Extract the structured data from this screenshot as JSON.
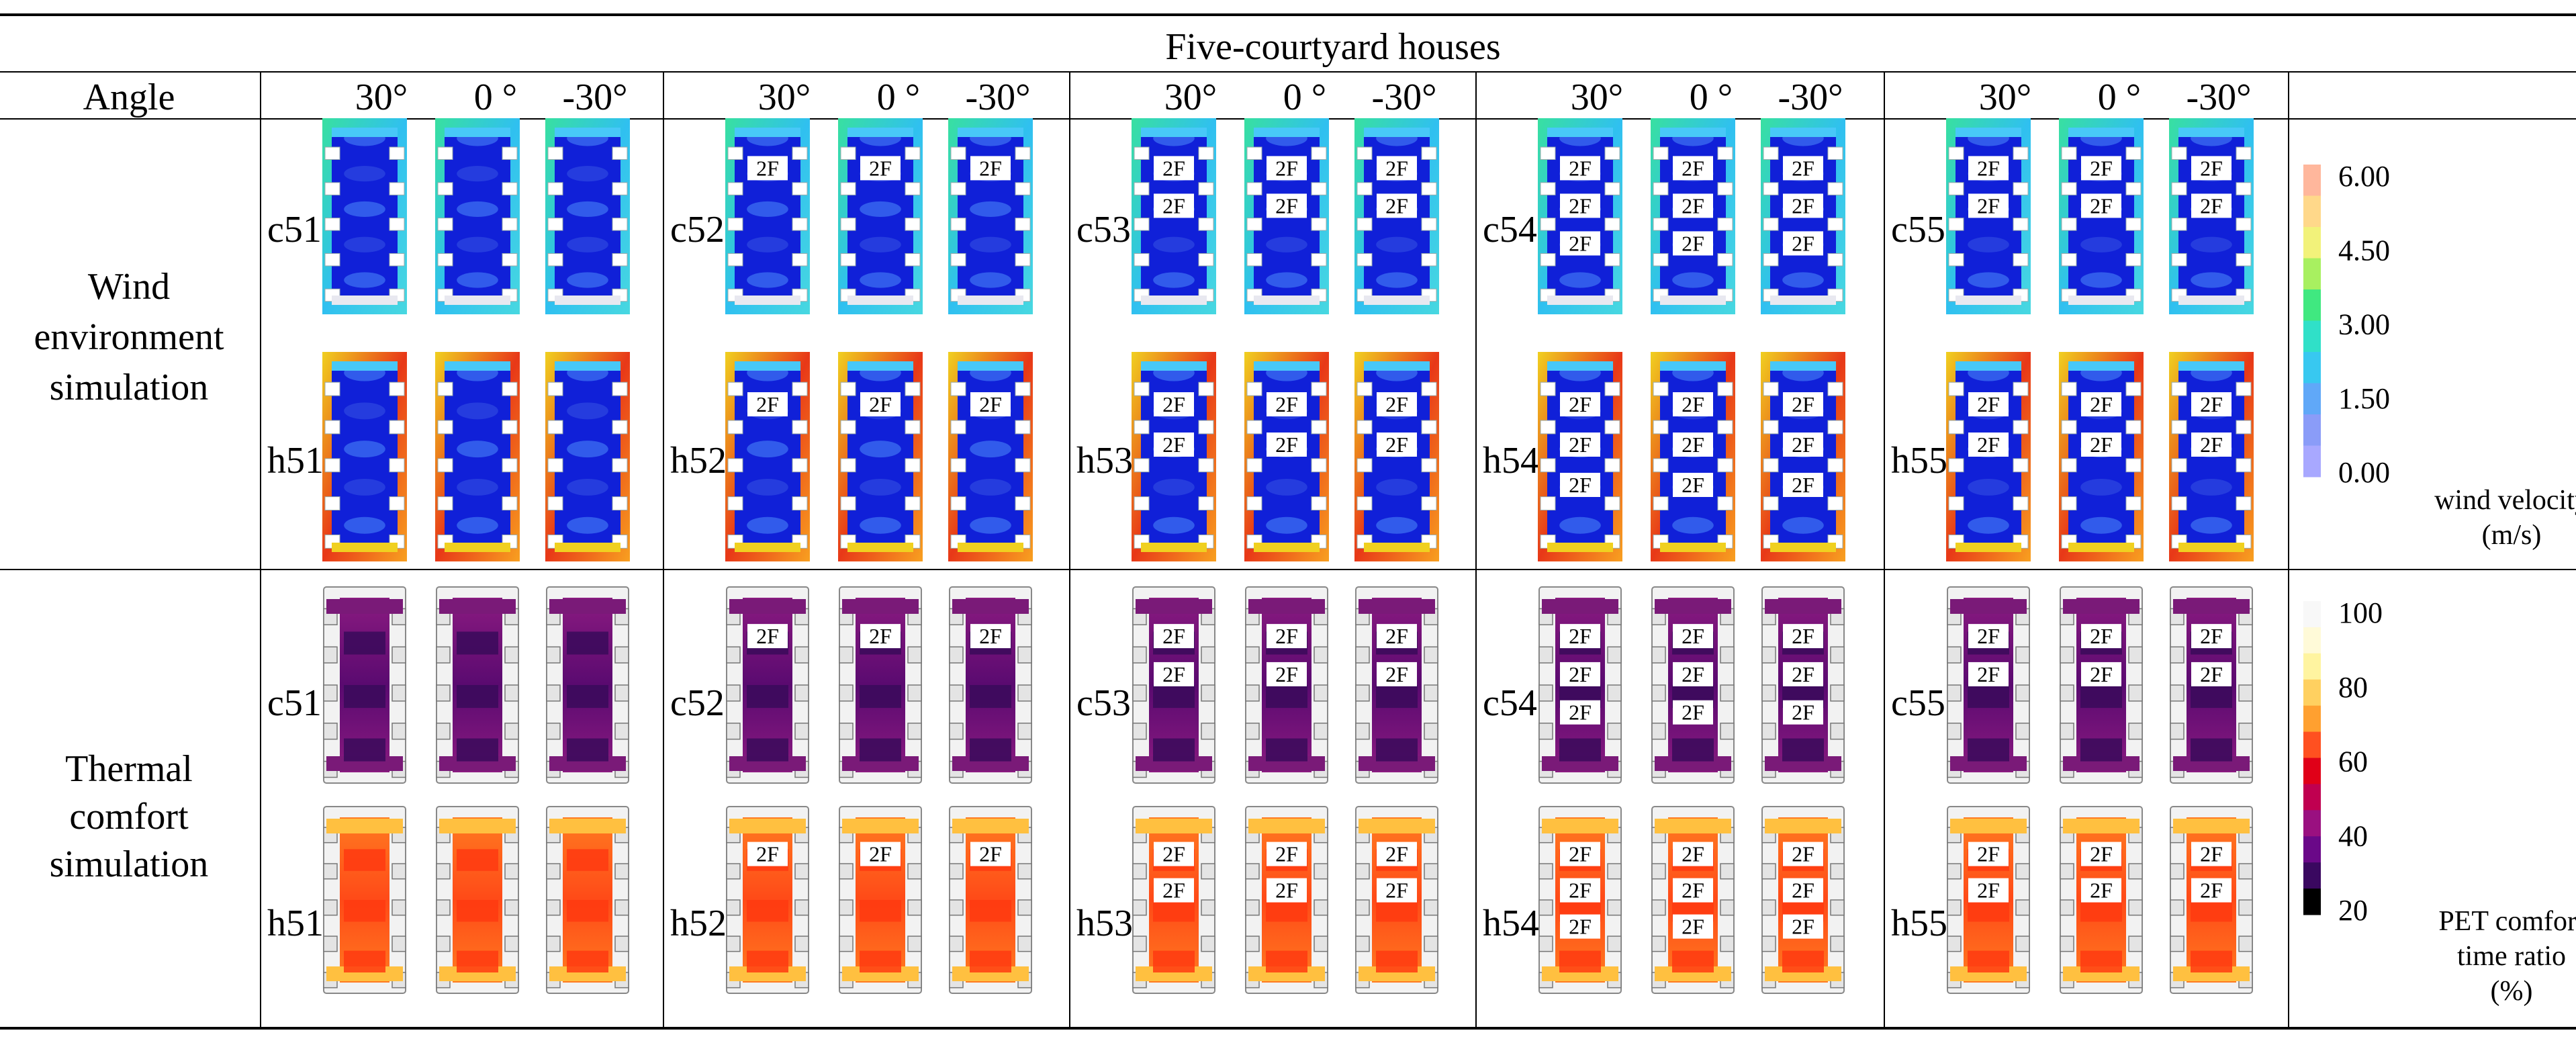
{
  "table": {
    "title": "Five-courtyard houses",
    "angle_header": "Angle",
    "angles": [
      "30°",
      "0 °",
      "-30°"
    ],
    "rows": [
      {
        "label": [
          "Wind",
          "environment",
          "simulation"
        ]
      },
      {
        "label": [
          "Thermal",
          "comfort",
          "simulation"
        ]
      }
    ],
    "groups": [
      {
        "top": "c51",
        "bottom": "h51",
        "floors": []
      },
      {
        "top": "c52",
        "bottom": "h52",
        "floors": [
          "2F"
        ]
      },
      {
        "top": "c53",
        "bottom": "h53",
        "floors": [
          "2F",
          "2F"
        ]
      },
      {
        "top": "c54",
        "bottom": "h54",
        "floors": [
          "2F",
          "2F",
          "2F"
        ]
      },
      {
        "top": "c55",
        "bottom": "h55",
        "floors": [
          "2F",
          "2F"
        ]
      }
    ],
    "floor_label": "2F"
  },
  "legends": {
    "wind": {
      "ticks": [
        "6.00",
        "4.50",
        "3.00",
        "1.50",
        "0.00"
      ],
      "title": [
        "wind velocity",
        "(m/s)"
      ],
      "colors": [
        "#ffb79c",
        "#ffd88a",
        "#f2f27a",
        "#a8f060",
        "#40e880",
        "#30e0c8",
        "#38c8f0",
        "#60a8f8",
        "#8a9cf8",
        "#a8a8ff"
      ]
    },
    "thermal": {
      "ticks": [
        "100",
        "80",
        "60",
        "40",
        "20"
      ],
      "title": [
        "PET comfort",
        "time ratio",
        "(%)"
      ],
      "colors": [
        "#f8f8f8",
        "#fffad8",
        "#fff4a0",
        "#ffd060",
        "#ffa030",
        "#ff5020",
        "#e00018",
        "#c00050",
        "#9a1080",
        "#6a0888",
        "#3a0860",
        "#000000"
      ]
    }
  },
  "colors": {
    "wind_deep": "#1020d8",
    "wind_frame_c": "#30c8e8",
    "wind_frame_h": "#e85020",
    "thermal_c_fill": "#7a1a78",
    "thermal_h_fill": "#ff5a1a",
    "thermal_edge_h": "#ffc040"
  }
}
